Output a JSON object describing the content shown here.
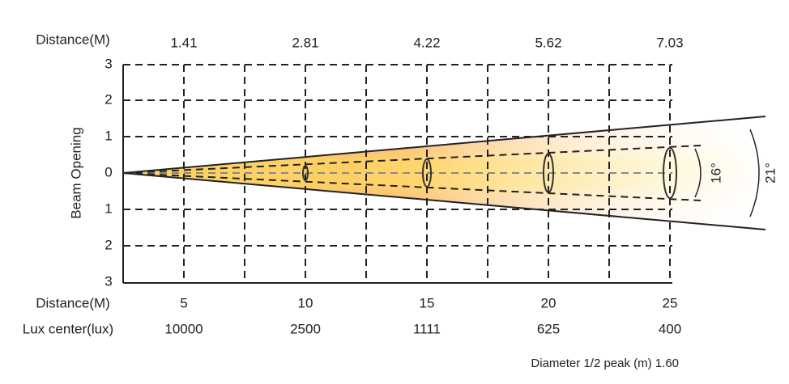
{
  "top_axis": {
    "label": "Distance(M)",
    "ticks": [
      "1.41",
      "2.81",
      "4.22",
      "5.62",
      "7.03"
    ]
  },
  "y_axis": {
    "title": "Beam Opening",
    "ticks": [
      "3",
      "2",
      "1",
      "0",
      "1",
      "2",
      "3"
    ]
  },
  "bottom": {
    "distance_label": "Distance(M)",
    "distances": [
      "5",
      "10",
      "15",
      "20",
      "25"
    ],
    "lux_label": "Lux center(lux)",
    "lux": [
      "10000",
      "2500",
      "1111",
      "625",
      "400"
    ]
  },
  "angles": {
    "half_peak": "16°",
    "field": "21°"
  },
  "footnote": "Diameter 1/2 peak (m) 1.60"
}
